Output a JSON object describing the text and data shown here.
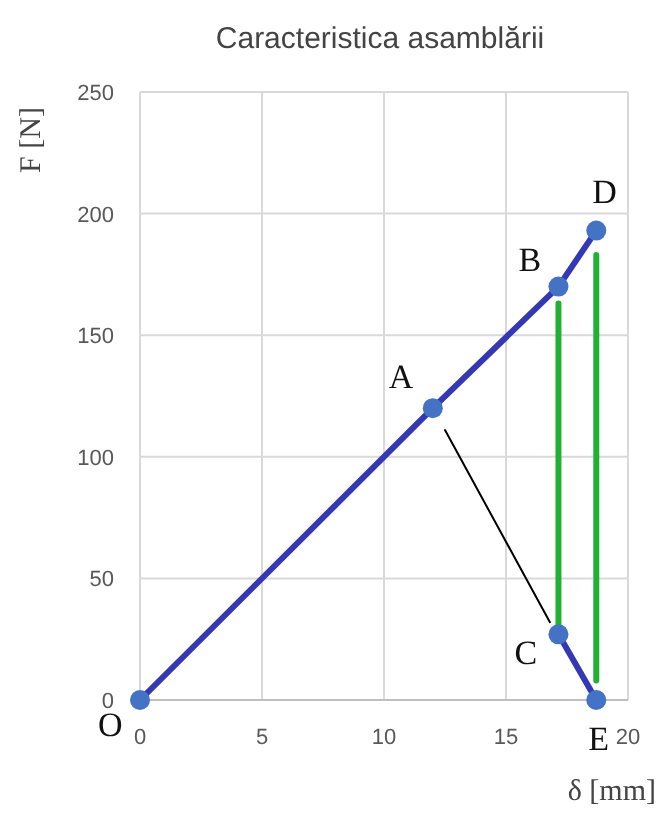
{
  "chart_data": {
    "type": "line",
    "title": "Caracteristica asamblării",
    "xlabel": "δ [mm]",
    "ylabel": "F [N]",
    "xlim": [
      0,
      20
    ],
    "ylim": [
      0,
      250
    ],
    "xticks": [
      0,
      5,
      10,
      15,
      20
    ],
    "yticks": [
      0,
      50,
      100,
      150,
      200,
      250
    ],
    "grid": true,
    "series": [
      {
        "color": "#3538b5",
        "x": [
          0,
          12,
          17.15,
          18.7
        ],
        "values": [
          0,
          120,
          170,
          193
        ]
      },
      {
        "color": "#3538b5",
        "x": [
          17.15,
          18.7
        ],
        "values": [
          27,
          0
        ]
      },
      {
        "color": "#000000",
        "x": [
          12.5,
          16.8
        ],
        "values": [
          111,
          32
        ]
      },
      {
        "color": "#22b033",
        "x": [
          17.15,
          17.15
        ],
        "values": [
          30,
          163
        ]
      },
      {
        "color": "#22b033",
        "x": [
          18.7,
          18.7
        ],
        "values": [
          8,
          183
        ]
      },
      {
        "type": "scatter",
        "color": "#4472c4",
        "marker": "circle",
        "x": [
          0,
          12,
          17.15,
          17.15,
          18.7,
          18.7
        ],
        "values": [
          0,
          120,
          170,
          27,
          193,
          0
        ]
      }
    ],
    "annotations": [
      {
        "text": "O",
        "x": 0,
        "y": 0
      },
      {
        "text": "A",
        "x": 12,
        "y": 120
      },
      {
        "text": "B",
        "x": 17.15,
        "y": 170
      },
      {
        "text": "C",
        "x": 17.15,
        "y": 27
      },
      {
        "text": "D",
        "x": 18.7,
        "y": 193
      },
      {
        "text": "E",
        "x": 18.7,
        "y": 0
      }
    ]
  }
}
